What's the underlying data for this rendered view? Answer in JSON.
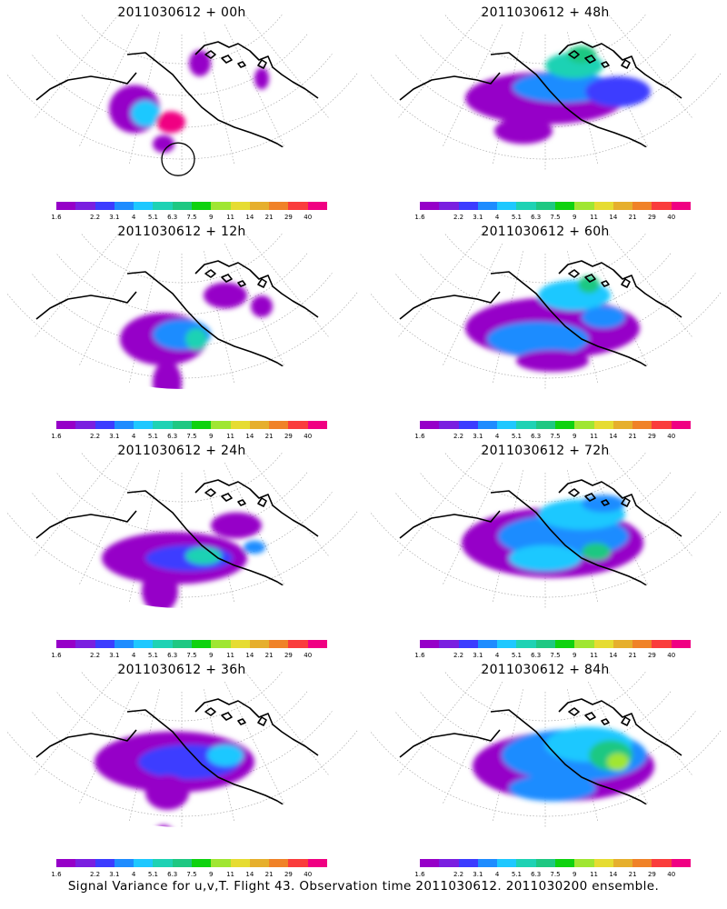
{
  "figure": {
    "caption": "Signal Variance for u,v,T. Flight 43. Observation time 2011030612. 2011030200 ensemble."
  },
  "colorbar": {
    "labels": [
      "1.6",
      "2.2",
      "3.1",
      "4",
      "5.1",
      "6.3",
      "7.5",
      "9",
      "11",
      "14",
      "21",
      "29",
      "40"
    ],
    "colors": [
      "#9600c8",
      "#7a1fe0",
      "#3c3cff",
      "#1e8cff",
      "#1ec8ff",
      "#1ed2b4",
      "#1ec882",
      "#0fd20f",
      "#a0e632",
      "#e6dc32",
      "#e6af2d",
      "#f08228",
      "#fa3c3c",
      "#f00082"
    ]
  },
  "panels": [
    {
      "title": "2011030612 + 00h",
      "col": 0,
      "row": 0,
      "blobs": [
        [
          0.37,
          0.5,
          0.07,
          0.11,
          0
        ],
        [
          0.4,
          0.52,
          0.04,
          0.06,
          4
        ],
        [
          0.47,
          0.56,
          0.04,
          0.05,
          13
        ],
        [
          0.45,
          0.66,
          0.03,
          0.04,
          0
        ],
        [
          0.55,
          0.29,
          0.03,
          0.06,
          0
        ],
        [
          0.72,
          0.36,
          0.02,
          0.05,
          0
        ]
      ]
    },
    {
      "title": "2011030612 + 48h",
      "col": 1,
      "row": 0,
      "blobs": [
        [
          0.5,
          0.45,
          0.22,
          0.12,
          0
        ],
        [
          0.55,
          0.4,
          0.14,
          0.07,
          3
        ],
        [
          0.58,
          0.3,
          0.08,
          0.06,
          5
        ],
        [
          0.44,
          0.6,
          0.08,
          0.06,
          0
        ],
        [
          0.7,
          0.42,
          0.09,
          0.07,
          2
        ],
        [
          0.6,
          0.25,
          0.04,
          0.04,
          6
        ]
      ]
    },
    {
      "title": "2011030612 + 12h",
      "col": 0,
      "row": 1,
      "blobs": [
        [
          0.45,
          0.55,
          0.12,
          0.12,
          0
        ],
        [
          0.5,
          0.53,
          0.08,
          0.07,
          3
        ],
        [
          0.54,
          0.55,
          0.03,
          0.05,
          5
        ],
        [
          0.46,
          0.75,
          0.04,
          0.1,
          0
        ],
        [
          0.62,
          0.35,
          0.06,
          0.06,
          0
        ],
        [
          0.72,
          0.4,
          0.03,
          0.05,
          0
        ]
      ]
    },
    {
      "title": "2011030612 + 60h",
      "col": 1,
      "row": 1,
      "blobs": [
        [
          0.52,
          0.5,
          0.24,
          0.14,
          0
        ],
        [
          0.48,
          0.55,
          0.14,
          0.08,
          3
        ],
        [
          0.58,
          0.35,
          0.1,
          0.07,
          4
        ],
        [
          0.66,
          0.45,
          0.06,
          0.05,
          3
        ],
        [
          0.52,
          0.65,
          0.1,
          0.05,
          0
        ],
        [
          0.62,
          0.3,
          0.03,
          0.04,
          6
        ]
      ]
    },
    {
      "title": "2011030612 + 24h",
      "col": 0,
      "row": 2,
      "blobs": [
        [
          0.48,
          0.55,
          0.2,
          0.12,
          0
        ],
        [
          0.52,
          0.55,
          0.12,
          0.06,
          2
        ],
        [
          0.56,
          0.54,
          0.05,
          0.04,
          5
        ],
        [
          0.44,
          0.7,
          0.05,
          0.1,
          0
        ],
        [
          0.65,
          0.4,
          0.07,
          0.06,
          0
        ],
        [
          0.7,
          0.5,
          0.03,
          0.03,
          3
        ]
      ]
    },
    {
      "title": "2011030612 + 72h",
      "col": 1,
      "row": 2,
      "blobs": [
        [
          0.52,
          0.48,
          0.25,
          0.16,
          0
        ],
        [
          0.55,
          0.45,
          0.18,
          0.1,
          3
        ],
        [
          0.6,
          0.35,
          0.12,
          0.07,
          4
        ],
        [
          0.5,
          0.55,
          0.1,
          0.06,
          4
        ],
        [
          0.64,
          0.52,
          0.04,
          0.04,
          6
        ],
        [
          0.66,
          0.3,
          0.06,
          0.04,
          3
        ]
      ]
    },
    {
      "title": "2011030612 + 36h",
      "col": 0,
      "row": 3,
      "blobs": [
        [
          0.48,
          0.48,
          0.22,
          0.14,
          0
        ],
        [
          0.52,
          0.48,
          0.14,
          0.08,
          2
        ],
        [
          0.62,
          0.45,
          0.05,
          0.05,
          4
        ],
        [
          0.46,
          0.62,
          0.06,
          0.08,
          0
        ],
        [
          0.45,
          0.82,
          0.03,
          0.05,
          0
        ]
      ]
    },
    {
      "title": "2011030612 + 84h",
      "col": 1,
      "row": 3,
      "blobs": [
        [
          0.55,
          0.5,
          0.25,
          0.16,
          0
        ],
        [
          0.58,
          0.45,
          0.2,
          0.12,
          3
        ],
        [
          0.62,
          0.4,
          0.12,
          0.08,
          4
        ],
        [
          0.68,
          0.45,
          0.06,
          0.07,
          6
        ],
        [
          0.7,
          0.48,
          0.03,
          0.04,
          8
        ],
        [
          0.52,
          0.6,
          0.12,
          0.06,
          3
        ]
      ]
    }
  ]
}
